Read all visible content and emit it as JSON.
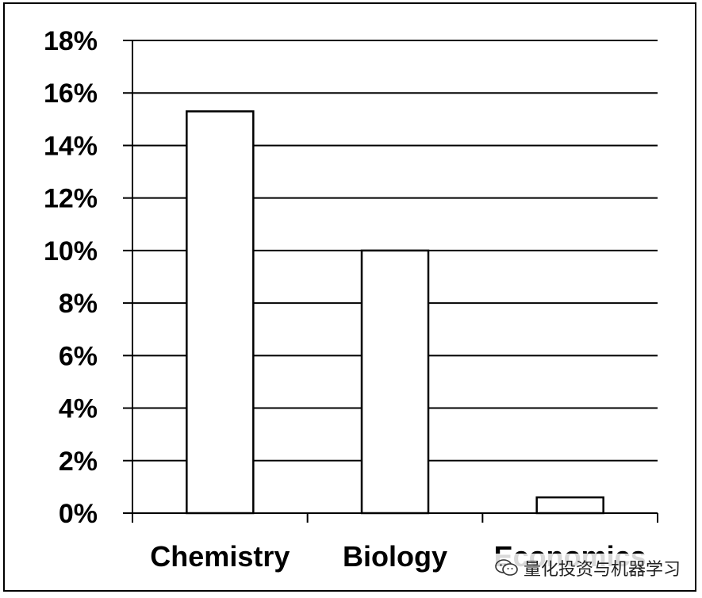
{
  "chart_data": {
    "type": "bar",
    "categories": [
      "Chemistry",
      "Biology",
      "Economics"
    ],
    "values": [
      15.3,
      10.0,
      0.6
    ],
    "ylim": [
      0,
      18
    ],
    "ytick_step": 2,
    "ytick_labels": [
      "0%",
      "2%",
      "4%",
      "6%",
      "8%",
      "10%",
      "12%",
      "14%",
      "16%",
      "18%"
    ],
    "title": "",
    "xlabel": "",
    "ylabel": "",
    "grid": true,
    "legend": "none",
    "bar_fill": "#ffffff",
    "bar_stroke": "#000000",
    "grid_color": "#000000"
  },
  "watermark": {
    "text": "量化投资与机器学习",
    "icon": "wechat-icon"
  }
}
